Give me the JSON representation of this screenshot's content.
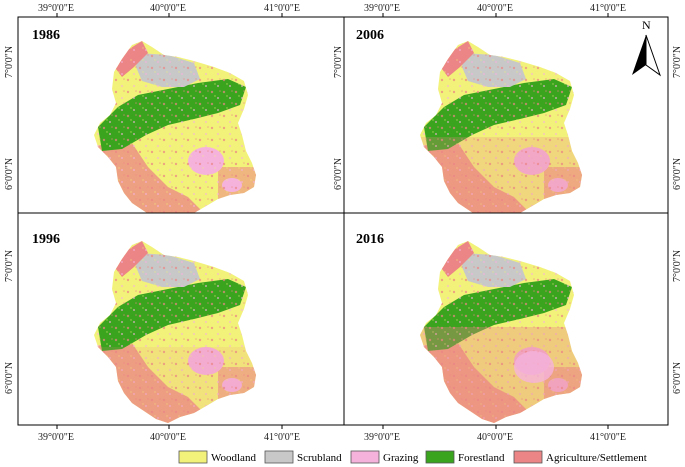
{
  "figure": {
    "longitude_ticks": [
      "39°0'0\"E",
      "40°0'0\"E",
      "41°0'0\"E"
    ],
    "latitude_ticks": [
      "7°0'0\"N",
      "6°0'0\"N"
    ],
    "panels": [
      {
        "year": "1986",
        "position": "top-left"
      },
      {
        "year": "2006",
        "position": "top-right"
      },
      {
        "year": "1996",
        "position": "bottom-left"
      },
      {
        "year": "2016",
        "position": "bottom-right"
      }
    ],
    "north_arrow": {
      "label": "N",
      "icon": "north-arrow-icon"
    }
  },
  "legend": [
    {
      "label": "Woodland",
      "color": "#f2f27a"
    },
    {
      "label": "Scrubland",
      "color": "#c8c8c8"
    },
    {
      "label": "Grazing",
      "color": "#f5b3dc"
    },
    {
      "label": "Forestland",
      "color": "#3aa41f"
    },
    {
      "label": "Agriculture/Settlement",
      "color": "#ec8585"
    }
  ]
}
